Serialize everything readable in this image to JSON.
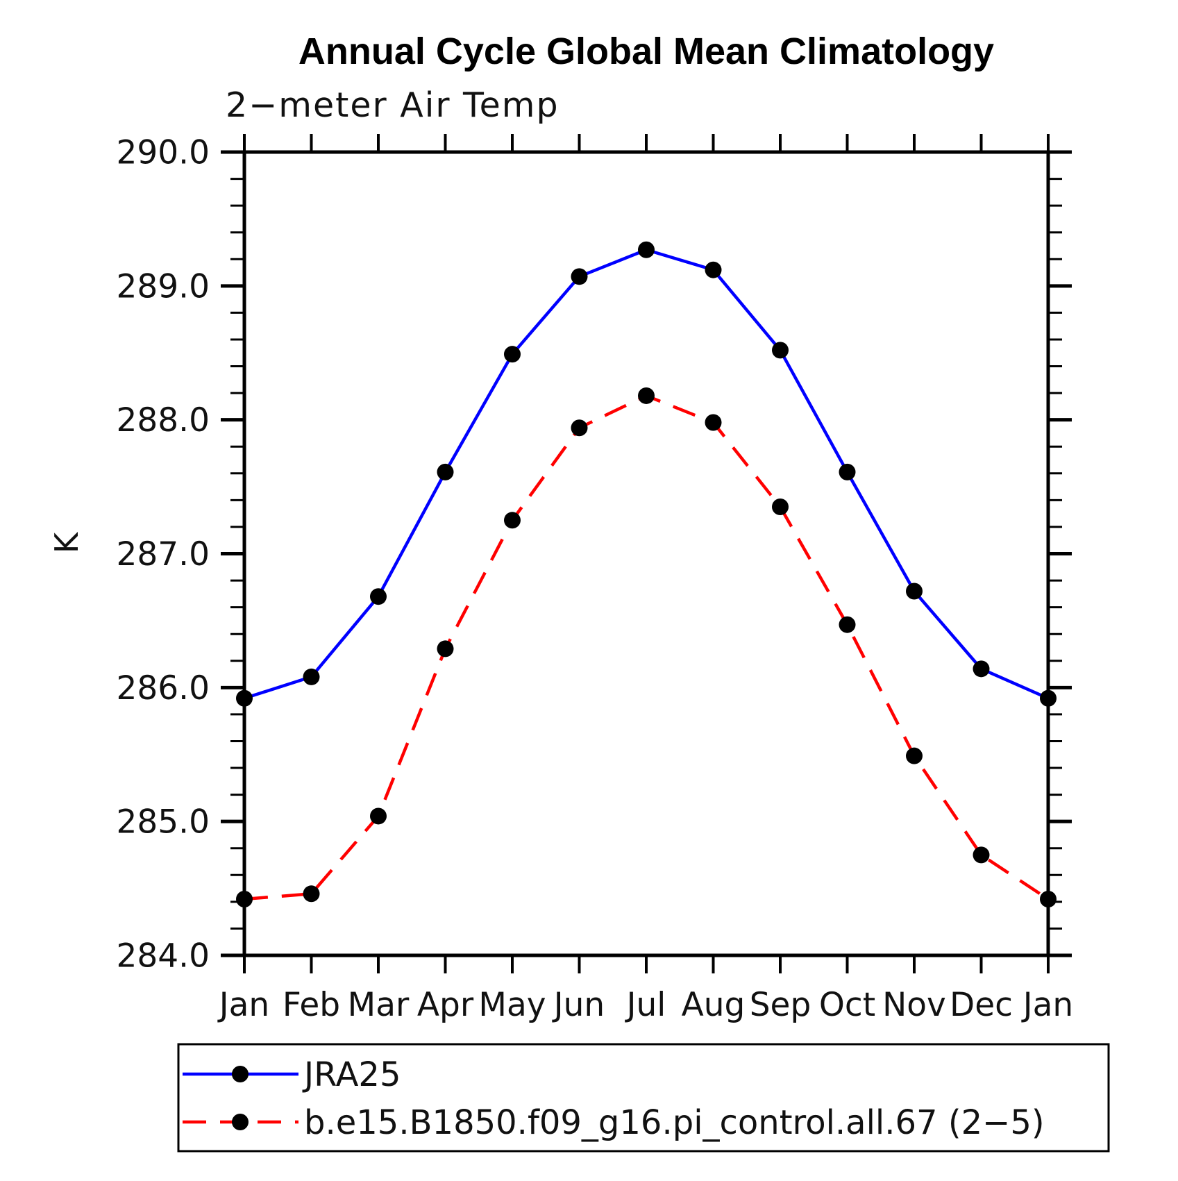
{
  "page": {
    "background_color": "#ffffff",
    "axis_color": "#000000"
  },
  "chart_data": {
    "type": "line",
    "title": "Annual Cycle Global Mean Climatology",
    "subtitle": "2−meter Air Temp",
    "ylabel": "K",
    "xlabel": "",
    "grid": "off",
    "legend_position": "bottom-left-box",
    "categories": [
      "Jan",
      "Feb",
      "Mar",
      "Apr",
      "May",
      "Jun",
      "Jul",
      "Aug",
      "Sep",
      "Oct",
      "Nov",
      "Dec",
      "Jan"
    ],
    "ylim": [
      284.0,
      290.0
    ],
    "y_major_step": 1.0,
    "y_minor_step": 0.2,
    "y_tick_labels": [
      "284.0",
      "285.0",
      "286.0",
      "287.0",
      "288.0",
      "289.0",
      "290.0"
    ],
    "series": [
      {
        "name": "JRA25",
        "color": "#0000ff",
        "line_style": "solid",
        "marker": "filled-circle",
        "marker_color": "#000000",
        "values": [
          285.92,
          286.08,
          286.68,
          287.61,
          288.49,
          289.07,
          289.27,
          289.12,
          288.52,
          287.61,
          286.72,
          286.14,
          285.92
        ]
      },
      {
        "name": "b.e15.B1850.f09_g16.pi_control.all.67 (2−5)",
        "color": "#ff0000",
        "line_style": "dashed",
        "marker": "filled-circle",
        "marker_color": "#000000",
        "values": [
          284.42,
          284.46,
          285.04,
          286.29,
          287.25,
          287.94,
          288.18,
          287.98,
          287.35,
          286.47,
          285.49,
          284.75,
          284.42
        ]
      }
    ]
  }
}
